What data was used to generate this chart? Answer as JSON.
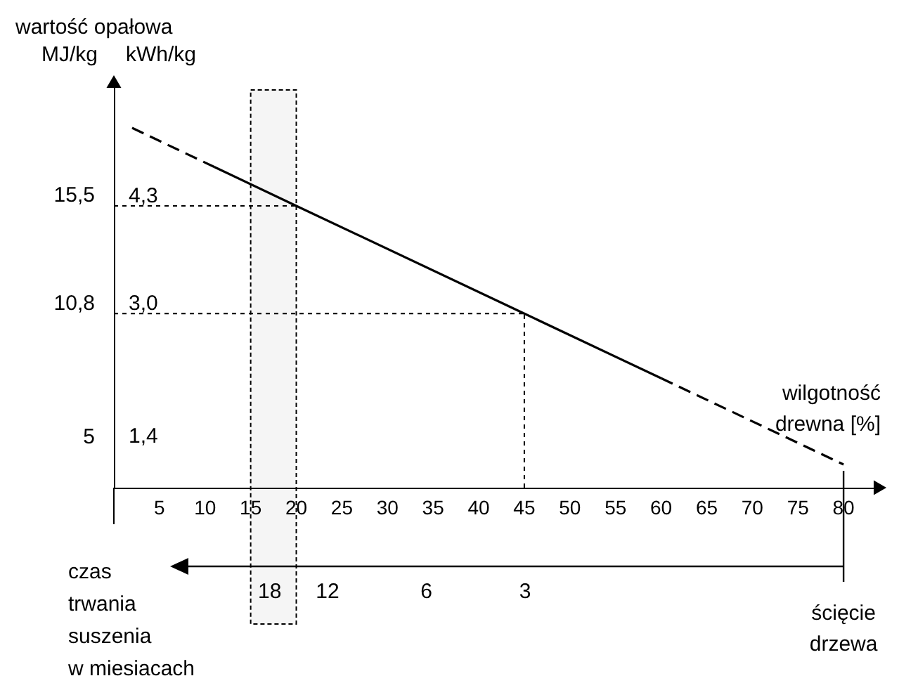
{
  "chart_data": {
    "type": "line",
    "title": "wartość opałowa",
    "xlabel": "wilgotność drewna [%]",
    "ylabel": "kWh/kg",
    "y2label": "MJ/kg",
    "x2label": "czas trwania suszenia w miesiacach",
    "xlim": [
      0,
      84
    ],
    "xticks": [
      5,
      10,
      15,
      20,
      25,
      30,
      35,
      40,
      45,
      50,
      55,
      60,
      65,
      70,
      75,
      80
    ],
    "x2lim": [
      53.4,
      0.248
    ],
    "x2ticks": [
      18,
      12,
      6,
      3
    ],
    "log": "x2",
    "annotations": [
      "ścięcie drzewa"
    ],
    "ylim": [
      0.9,
      5.8
    ],
    "yticks": [
      {
        "value": 1.4,
        "label": "1,4"
      },
      {
        "value": 3.0,
        "label": "3,0"
      },
      {
        "value": 4.3,
        "label": "4,3"
      }
    ],
    "y2lim": [
      3.24,
      20.88
    ],
    "y2ticks": [
      5,
      {
        "value": 10.8,
        "label": "10,8"
      },
      {
        "value": 15.5,
        "label": "15,5"
      }
    ],
    "series": [
      {
        "type": "line",
        "color": "#000000",
        "line_style": "dashed",
        "x": [
          2,
          11
        ],
        "values": [
          5.24,
          4.77
        ]
      },
      {
        "type": "line",
        "color": "#000000",
        "line_style": "solid",
        "x": [
          11,
          20,
          45,
          60
        ],
        "values": [
          4.77,
          4.3,
          3.0,
          2.22
        ]
      },
      {
        "type": "line",
        "color": "#000000",
        "line_style": "dashed",
        "x": [
          60,
          80
        ],
        "values": [
          2.22,
          1.18
        ]
      }
    ],
    "ref_lines": [
      {
        "axis": "y",
        "value": 4.3,
        "color": "#000000",
        "line_style": "dotted"
      },
      {
        "axis": "y",
        "value": 3.0,
        "color": "#000000",
        "line_style": "dotted"
      },
      {
        "axis": "x",
        "value": 45,
        "color": "#000000",
        "line_style": "dotted"
      }
    ],
    "bands": [
      {
        "axis": "x",
        "from": 15,
        "to": 20,
        "color": "#000000"
      }
    ],
    "grid": false
  }
}
